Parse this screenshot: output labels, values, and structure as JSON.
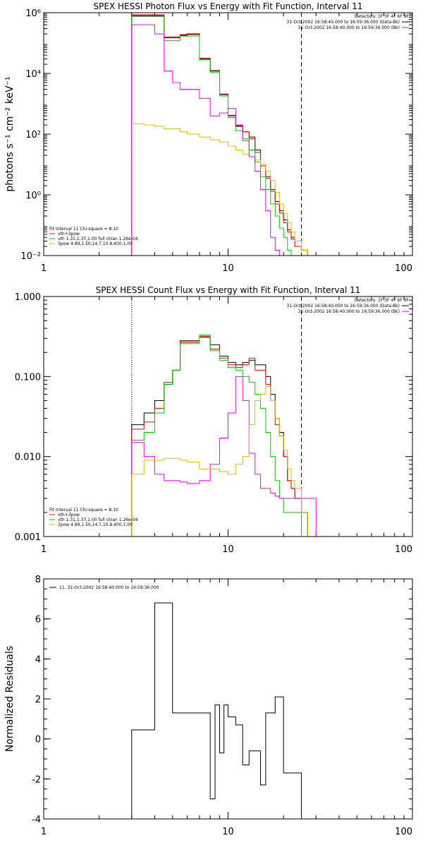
{
  "colors": {
    "total": "#000000",
    "fit": "#ff0000",
    "thermal": "#00cc00",
    "nonthermal": "#ff00ff",
    "bkg": "#ddbb00"
  },
  "chart_data": [
    {
      "type": "line",
      "title": "SPEX HESSI Photon Flux vs Energy with Fit Function, Interval 11",
      "xlabel": "",
      "ylabel": "photons s⁻¹ cm⁻² keV⁻¹",
      "xscale": "log",
      "yscale": "log",
      "xlim": [
        1,
        100
      ],
      "ylim": [
        0.01,
        1000000
      ],
      "xticks": [
        1,
        10,
        100
      ],
      "xtick_labels": [
        "1",
        "10",
        "100"
      ],
      "yticks": [
        0.01,
        1,
        100,
        10000,
        1000000
      ],
      "ytick_labels": [
        "10⁻²",
        "10⁰",
        "10²",
        "10⁴",
        "10⁶"
      ],
      "vlines": [
        {
          "x": 3,
          "style": "dotted"
        },
        {
          "x": 25,
          "style": "dashed"
        }
      ],
      "legend_top_right": [
        "Detectors: 1F 3F 4F 6F 9F",
        "31-Oct-2002 16:58:40.000 to 16:59:36.000 (Data-Bk)",
        "31-Oct-2002 16:58:40.000 to 16:59:36.000 (Bk)"
      ],
      "legend_bottom_left": [
        "Fit Interval 11    Chi-square = 8.10",
        "vth+3pow",
        "vth 1.31,1.37,1.00   full chian 1.26e-04",
        "3pow 4.89,1.50,14.7,10.8,400,1.00"
      ],
      "x_edges": [
        3,
        3.5,
        4,
        4.5,
        5,
        5.5,
        6,
        7,
        8,
        9,
        10,
        11,
        12,
        13,
        14,
        15,
        16,
        17,
        18,
        19,
        20,
        21,
        22,
        23,
        25,
        27,
        30
      ],
      "series": [
        {
          "name": "31-Oct-2002 16:58:40.000 to 16:59:36.000 (Data-Bk)",
          "color_key": "total",
          "values": [
            800000,
            800000,
            800000,
            150000,
            150000,
            180000,
            200000,
            30000,
            12000,
            2000,
            400,
            180,
            120,
            80,
            30,
            10,
            4,
            1.5,
            0.6,
            0.3,
            0.15,
            0.07,
            0.04,
            0.02,
            0.015,
            0.01
          ]
        },
        {
          "name": "vth+3pow",
          "color_key": "fit",
          "values": [
            850000,
            850000,
            850000,
            160000,
            160000,
            190000,
            190000,
            32000,
            12500,
            2100,
            420,
            190,
            120,
            70,
            25,
            9,
            3.5,
            1.3,
            0.5,
            0.25,
            0.12,
            0.06,
            0.035,
            0.02,
            0.015,
            0.01
          ]
        },
        {
          "name": "vth 1.31,1.37,1.00   full chian 1.26e-04",
          "color_key": "thermal",
          "values": [
            750000,
            750000,
            750000,
            120000,
            120000,
            170000,
            170000,
            28000,
            11000,
            1800,
            350,
            130,
            70,
            30,
            12,
            4,
            1.5,
            0.5,
            0.2,
            0.08,
            0.04,
            0.015,
            0.01,
            0.01,
            0.01,
            0.01
          ]
        },
        {
          "name": "3pow 4.89,1.50,14.7,10.8,400,1.00",
          "color_key": "bkg",
          "values": [
            220,
            200,
            180,
            150,
            150,
            120,
            100,
            80,
            65,
            55,
            40,
            30,
            22,
            18,
            14,
            10,
            6,
            3,
            1.2,
            0.5,
            0.25,
            0.12,
            0.06,
            0.03,
            0.015,
            0.01
          ]
        },
        {
          "name": "31-Oct-2002 16:58:40.000 to 16:59:36.000 (Bk)",
          "color_key": "nonthermal",
          "values": [
            400000,
            400000,
            200000,
            12000,
            5000,
            3000,
            3000,
            1500,
            400,
            500,
            700,
            200,
            60,
            18,
            6,
            1.5,
            0.3,
            0.04,
            0.015,
            0.01,
            0.01,
            0.01,
            0.01,
            0.01,
            0.01,
            0.01
          ]
        }
      ]
    },
    {
      "type": "line",
      "title": "SPEX HESSI Count Flux vs Energy with Fit Function, Interval 11",
      "xlabel": "",
      "ylabel": "",
      "xscale": "log",
      "yscale": "log",
      "xlim": [
        1,
        100
      ],
      "ylim": [
        0.001,
        1
      ],
      "xticks": [
        1,
        10,
        100
      ],
      "xtick_labels": [
        "1",
        "10",
        "100"
      ],
      "yticks": [
        0.001,
        0.01,
        0.1,
        1
      ],
      "ytick_labels": [
        "0.001",
        "0.010",
        "0.100",
        "1.000"
      ],
      "vlines": [
        {
          "x": 3,
          "style": "dotted"
        },
        {
          "x": 25,
          "style": "dashed"
        }
      ],
      "legend_top_right": [
        "Detectors: 1F 3F 4F 6F 9F",
        "31-Oct-2002 16:58:40.000 to 16:59:36.000 (Data-Bk)",
        "31-Oct-2002 16:58:40.000 to 16:59:36.000 (Bk)"
      ],
      "legend_bottom_left": [
        "Fit Interval 11    Chi-square = 8.10",
        "vth+3pow",
        "vth 1.31,1.37,1.00   full chian 1.26e-04",
        "3pow 4.89,1.50,14.7,10.8,400,1.00"
      ],
      "x_edges": [
        3,
        3.5,
        4,
        4.5,
        5,
        5.5,
        6,
        7,
        8,
        9,
        10,
        11,
        12,
        13,
        14,
        15,
        16,
        17,
        18,
        19,
        20,
        21,
        22,
        23,
        25,
        27,
        30
      ],
      "series": [
        {
          "name": "31-Oct-2002 16:58:40.000 to 16:59:36.000 (Data-Bk)",
          "color_key": "total",
          "values": [
            0.025,
            0.035,
            0.05,
            0.08,
            0.12,
            0.28,
            0.28,
            0.31,
            0.25,
            0.18,
            0.15,
            0.14,
            0.15,
            0.16,
            0.14,
            0.14,
            0.1,
            0.06,
            0.03,
            0.02,
            0.01,
            0.005,
            0.004,
            0.003,
            0.002,
            0.001
          ]
        },
        {
          "name": "vth+3pow",
          "color_key": "fit",
          "values": [
            0.022,
            0.027,
            0.04,
            0.085,
            0.12,
            0.27,
            0.27,
            0.32,
            0.22,
            0.17,
            0.14,
            0.13,
            0.14,
            0.17,
            0.12,
            0.12,
            0.08,
            0.05,
            0.025,
            0.018,
            0.01,
            0.005,
            0.004,
            0.003,
            0.002,
            0.001
          ]
        },
        {
          "name": "vth 1.31,1.37,1.00   full chian 1.26e-04",
          "color_key": "thermal",
          "values": [
            0.016,
            0.02,
            0.035,
            0.08,
            0.12,
            0.26,
            0.26,
            0.33,
            0.21,
            0.16,
            0.13,
            0.12,
            0.1,
            0.085,
            0.06,
            0.04,
            0.02,
            0.01,
            0.005,
            0.003,
            0.002,
            0.002,
            0.002,
            0.002,
            0.001,
            0.001
          ]
        },
        {
          "name": "31-Oct-2002 16:58:40.000 to 16:59:36.000 (Bk)",
          "color_key": "nonthermal",
          "values": [
            0.015,
            0.01,
            0.006,
            0.005,
            0.005,
            0.0048,
            0.0046,
            0.005,
            0.008,
            0.017,
            0.035,
            0.1,
            0.05,
            0.011,
            0.006,
            0.004,
            0.004,
            0.0035,
            0.0032,
            0.003,
            0.003,
            0.003,
            0.003,
            0.003,
            0.003,
            0.003
          ]
        },
        {
          "name": "3pow 4.89,1.50,14.7,10.8,400,1.00",
          "color_key": "bkg",
          "values": [
            0.006,
            0.009,
            0.009,
            0.0095,
            0.0095,
            0.009,
            0.0085,
            0.007,
            0.007,
            0.0065,
            0.006,
            0.008,
            0.01,
            0.025,
            0.05,
            0.06,
            0.075,
            0.05,
            0.03,
            0.018,
            0.012,
            0.007,
            0.005,
            0.004,
            0.002,
            0.001
          ]
        }
      ]
    },
    {
      "type": "line",
      "title": "",
      "xlabel": "",
      "ylabel": "Normalized Residuals",
      "xscale": "log",
      "yscale": "linear",
      "xlim": [
        1,
        100
      ],
      "ylim": [
        -4,
        8
      ],
      "xticks": [
        1,
        10,
        100
      ],
      "xtick_labels": [
        "1",
        "10",
        "100"
      ],
      "yticks": [
        -4,
        -2,
        0,
        2,
        4,
        6,
        8
      ],
      "ytick_labels": [
        "-4",
        "-2",
        "0",
        "2",
        "4",
        "6",
        "8"
      ],
      "legend_top_left": [
        "11. 31-Oct-2002 16:58:40.000 to 16:59:36.000"
      ],
      "x_edges": [
        3,
        4,
        4.5,
        5,
        6,
        7,
        8,
        8.5,
        9,
        9.5,
        10,
        11,
        12,
        13,
        14,
        15,
        16,
        17,
        18,
        20,
        22,
        25
      ],
      "series": [
        {
          "name": "11. 31-Oct-2002 16:58:40.000 to 16:59:36.000",
          "color_key": "total",
          "values": [
            0.45,
            6.8,
            6.8,
            1.3,
            1.3,
            1.3,
            -3.0,
            1.7,
            -0.7,
            1.7,
            1.1,
            0.7,
            -1.3,
            -0.6,
            -0.6,
            -2.3,
            1.3,
            1.3,
            2.1,
            -1.7,
            -1.7
          ]
        }
      ]
    }
  ]
}
